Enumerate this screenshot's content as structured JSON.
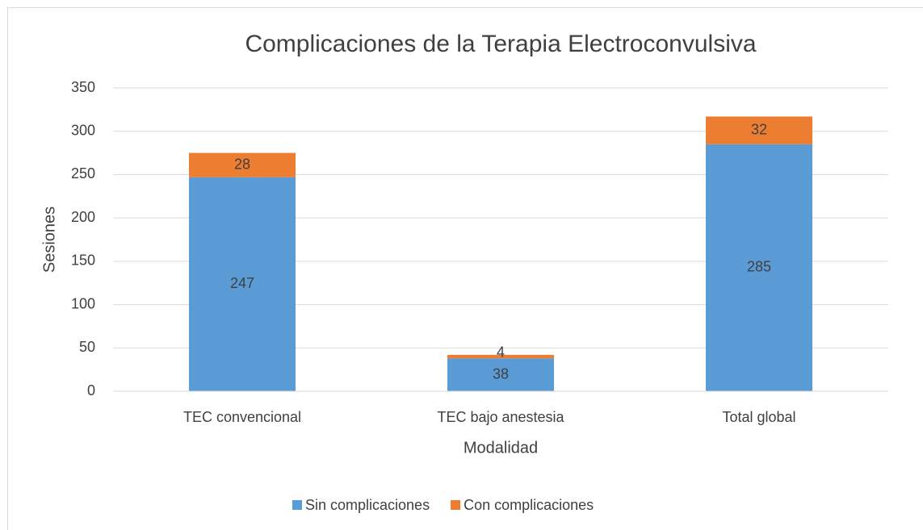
{
  "chart_data": {
    "type": "bar",
    "stacked": true,
    "title": "Complicaciones de la Terapia Electroconvulsiva",
    "xlabel": "Modalidad",
    "ylabel": "Sesiones",
    "categories": [
      "TEC convencional",
      "TEC bajo anestesia",
      "Total global"
    ],
    "series": [
      {
        "name": "Sin complicaciones",
        "color": "#5b9bd5",
        "values": [
          247,
          38,
          285
        ]
      },
      {
        "name": "Con complicaciones",
        "color": "#ed7d31",
        "values": [
          28,
          4,
          32
        ]
      }
    ],
    "ylim": [
      0,
      350
    ],
    "yticks": [
      0,
      50,
      100,
      150,
      200,
      250,
      300,
      350
    ],
    "grid": true,
    "legend": "bottom"
  }
}
